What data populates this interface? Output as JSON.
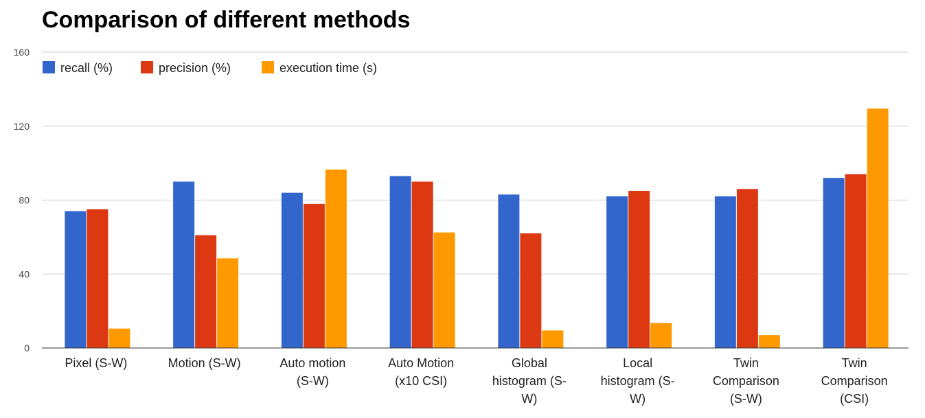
{
  "chart_data": {
    "type": "bar",
    "title": "Comparison of different methods",
    "xlabel": "",
    "ylabel": "",
    "ylim": [
      0,
      160
    ],
    "yticks": [
      0,
      40,
      80,
      120,
      160
    ],
    "grid": true,
    "legend_position": "top-left",
    "categories": [
      [
        "Pixel (S-W)"
      ],
      [
        "Motion (S-W)"
      ],
      [
        "Auto motion",
        "(S-W)"
      ],
      [
        "Auto Motion",
        "(x10 CSI)"
      ],
      [
        "Global",
        "histogram (S-",
        "W)"
      ],
      [
        "Local",
        "histogram (S-",
        "W)"
      ],
      [
        "Twin",
        "Comparison",
        "(S-W)"
      ],
      [
        "Twin",
        "Comparison",
        "(CSI)"
      ]
    ],
    "series": [
      {
        "name": "recall (%)",
        "color": "#3366cc",
        "values": [
          74,
          90,
          84,
          93,
          83,
          82,
          82,
          92
        ]
      },
      {
        "name": "precision (%)",
        "color": "#dc3912",
        "values": [
          75,
          61,
          78,
          90,
          62,
          85,
          86,
          94
        ]
      },
      {
        "name": "execution time (s)",
        "color": "#ff9900",
        "values": [
          10.5,
          48.5,
          96.5,
          62.5,
          9.5,
          13.5,
          7,
          129.5
        ]
      }
    ]
  }
}
